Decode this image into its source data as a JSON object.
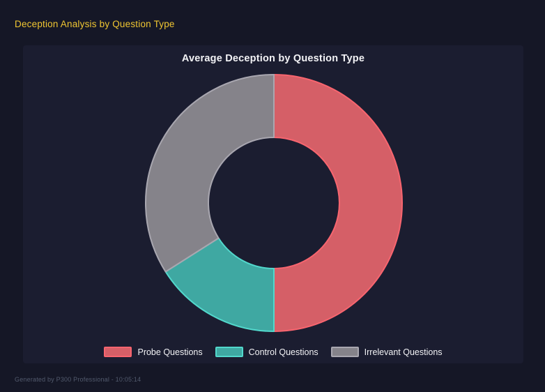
{
  "header": {
    "title": "Deception Analysis by Question Type"
  },
  "chart": {
    "title": "Average Deception by Question Type"
  },
  "chart_data": {
    "type": "pie",
    "subtype": "doughnut",
    "title": "Average Deception by Question Type",
    "categories": [
      "Probe Questions",
      "Control Questions",
      "Irrelevant Questions"
    ],
    "values": [
      50,
      16,
      34
    ],
    "values_unit": "percent_of_circle",
    "rotation_deg": 0,
    "cutout_percent": 51,
    "legend_position": "bottom",
    "slices": [
      {
        "label": "Probe Questions",
        "value": 50,
        "fill": "#d55f67",
        "border": "#f8656f"
      },
      {
        "label": "Control Questions",
        "value": 16,
        "fill": "#3fa8a2",
        "border": "#52d8cc"
      },
      {
        "label": "Irrelevant Questions",
        "value": 34,
        "fill": "#85838a",
        "border": "#a9a7b0"
      }
    ]
  },
  "footer": {
    "note": "Generated by P300 Professional - 10:05:14"
  },
  "theme": {
    "page_bg": "#151726",
    "panel_bg": "#1b1d30",
    "accent": "#f0c632",
    "text": "#f2f2f5",
    "muted": "#525a6d"
  }
}
